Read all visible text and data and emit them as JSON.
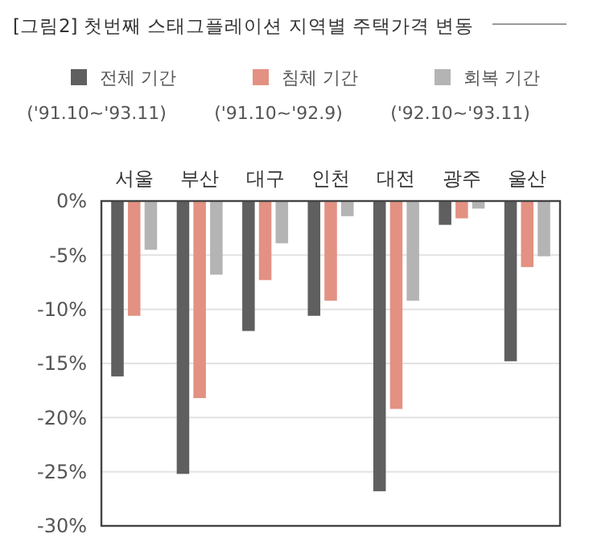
{
  "chart_data": {
    "type": "bar",
    "title": "[그림2] 첫번째 스태그플레이션 지역별 주택가격 변동",
    "categories": [
      "서울",
      "부산",
      "대구",
      "인천",
      "대전",
      "광주",
      "울산"
    ],
    "series": [
      {
        "name": "전체 기간\n('91.10~'93.11)",
        "color": "#5f5f5f",
        "values": [
          -16.2,
          -25.2,
          -12,
          -10.6,
          -26.8,
          -2.2,
          -14.8
        ]
      },
      {
        "name": "침체 기간\n('91.10~'92.9)",
        "color": "#e39182",
        "values": [
          -10.6,
          -18.2,
          -7.3,
          -9.2,
          -19.2,
          -1.6,
          -6.1
        ]
      },
      {
        "name": "회복 기간\n('92.10~'93.11)",
        "color": "#b4b4b4",
        "values": [
          -4.5,
          -6.8,
          -3.9,
          -1.4,
          -9.2,
          -0.7,
          -5.1
        ]
      }
    ],
    "ylim": [
      -30,
      0
    ],
    "yticks": [
      {
        "value": 0,
        "label": "0%"
      },
      {
        "value": -5,
        "label": "-5%"
      },
      {
        "value": -10,
        "label": "-10%"
      },
      {
        "value": -15,
        "label": "-15%"
      },
      {
        "value": -20,
        "label": "-20%"
      },
      {
        "value": -25,
        "label": "-25%"
      },
      {
        "value": -30,
        "label": "-30%"
      }
    ],
    "grid": "y",
    "legend": "top"
  }
}
